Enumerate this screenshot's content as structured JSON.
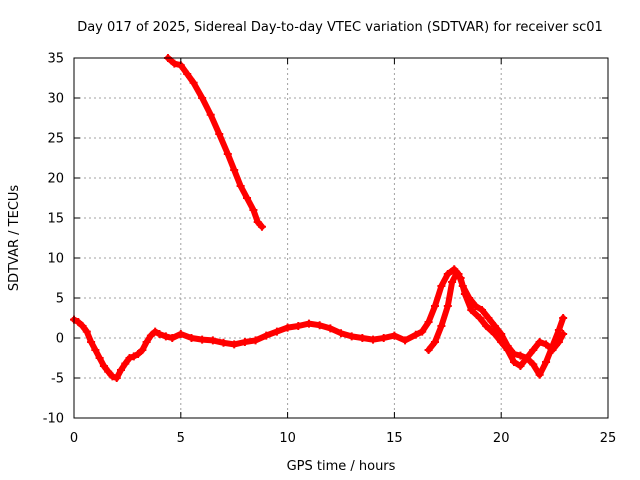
{
  "chart_data": {
    "type": "scatter",
    "title": "Day 017 of 2025, Sidereal Day-to-day VTEC variation (SDTVAR) for receiver sc01",
    "xlabel": "GPS time / hours",
    "ylabel": "SDTVAR / TECUs",
    "xlim": [
      0,
      25
    ],
    "ylim": [
      -10,
      35
    ],
    "xticks": [
      0,
      5,
      10,
      15,
      20,
      25
    ],
    "yticks": [
      -10,
      -5,
      0,
      5,
      10,
      15,
      20,
      25,
      30,
      35
    ],
    "grid": true,
    "series_color": "#ff0000",
    "series": [
      {
        "name": "segment-1",
        "x": [
          4.4,
          4.7,
          5.0,
          5.3,
          5.6,
          6.0,
          6.4,
          6.8,
          7.2,
          7.5,
          7.8,
          8.1,
          8.4,
          8.6,
          8.8
        ],
        "y": [
          35.0,
          34.3,
          34.1,
          33.0,
          31.9,
          30.0,
          27.9,
          25.5,
          23.0,
          21.0,
          19.0,
          17.5,
          16.0,
          14.5,
          13.9
        ]
      },
      {
        "name": "segment-2",
        "x": [
          0.0,
          0.2,
          0.4,
          0.6,
          0.8,
          1.0,
          1.2,
          1.4,
          1.6,
          1.8,
          2.0,
          2.2,
          2.4,
          2.6,
          2.8,
          3.0,
          3.2,
          3.4,
          3.6,
          3.8,
          4.0,
          4.3,
          4.6,
          5.0,
          5.5,
          6.0,
          6.5,
          7.0,
          7.5,
          8.0,
          8.5,
          9.0,
          9.5,
          10.0,
          10.5,
          11.0,
          11.5,
          12.0,
          12.5,
          13.0,
          13.5,
          14.0,
          14.5,
          15.0,
          15.5,
          16.0,
          16.3,
          16.6,
          16.9,
          17.2,
          17.5,
          17.8,
          18.0,
          18.2,
          18.5,
          18.8,
          19.1,
          19.4,
          19.7,
          20.0,
          20.3,
          20.6,
          20.9,
          21.2,
          21.5,
          21.8,
          22.1,
          22.4,
          22.7,
          22.9
        ],
        "y": [
          2.3,
          2.0,
          1.5,
          0.8,
          -0.5,
          -1.5,
          -2.5,
          -3.5,
          -4.2,
          -4.8,
          -5.0,
          -4.0,
          -3.2,
          -2.5,
          -2.3,
          -2.0,
          -1.5,
          -0.5,
          0.3,
          0.8,
          0.5,
          0.2,
          0.0,
          0.5,
          0.0,
          -0.2,
          -0.3,
          -0.6,
          -0.8,
          -0.5,
          -0.3,
          0.3,
          0.8,
          1.3,
          1.5,
          1.8,
          1.6,
          1.2,
          0.6,
          0.2,
          0.0,
          -0.2,
          0.0,
          0.3,
          -0.3,
          0.4,
          0.8,
          2.0,
          4.0,
          6.5,
          8.0,
          8.6,
          8.0,
          6.5,
          5.0,
          4.0,
          3.5,
          2.5,
          1.5,
          0.5,
          -1.0,
          -2.0,
          -2.2,
          -2.5,
          -3.3,
          -4.6,
          -3.0,
          -1.0,
          1.0,
          2.5
        ]
      },
      {
        "name": "segment-3",
        "x": [
          16.6,
          16.9,
          17.2,
          17.5,
          17.7,
          17.9,
          18.1,
          18.3,
          18.6,
          19.0,
          19.3,
          19.7,
          20.0,
          20.3,
          20.6,
          20.9,
          21.2,
          21.5,
          21.8,
          22.1,
          22.4,
          22.7,
          22.9
        ],
        "y": [
          -1.5,
          -0.5,
          1.5,
          4.0,
          7.0,
          8.0,
          7.5,
          5.5,
          3.5,
          2.5,
          1.5,
          0.5,
          -0.5,
          -1.5,
          -3.0,
          -3.5,
          -2.5,
          -1.5,
          -0.5,
          -0.8,
          -1.5,
          -0.5,
          0.5
        ]
      }
    ]
  }
}
